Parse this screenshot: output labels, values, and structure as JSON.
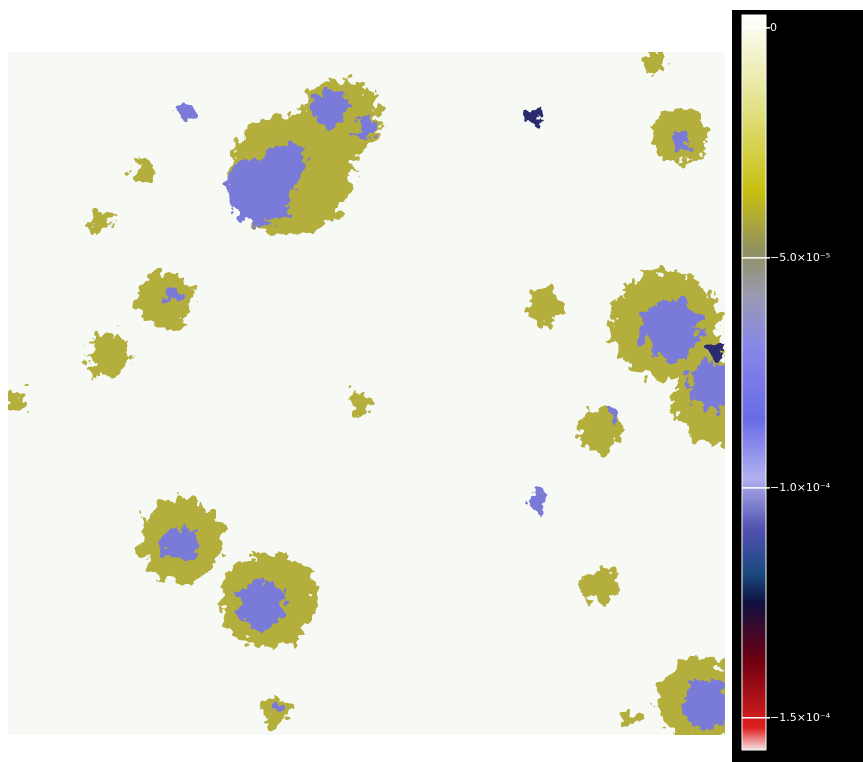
{
  "chart_data": {
    "type": "heatmap",
    "ylim": [
      -0.000157,
      2.8e-06
    ],
    "yticks": [
      0,
      {
        "value": -5e-05,
        "label": "−5.0×10⁻⁵"
      },
      {
        "value": -0.0001,
        "label": "−1.0×10⁻⁴"
      },
      {
        "value": -0.00015,
        "label": "−1.5×10⁻⁴"
      }
    ]
  }
}
